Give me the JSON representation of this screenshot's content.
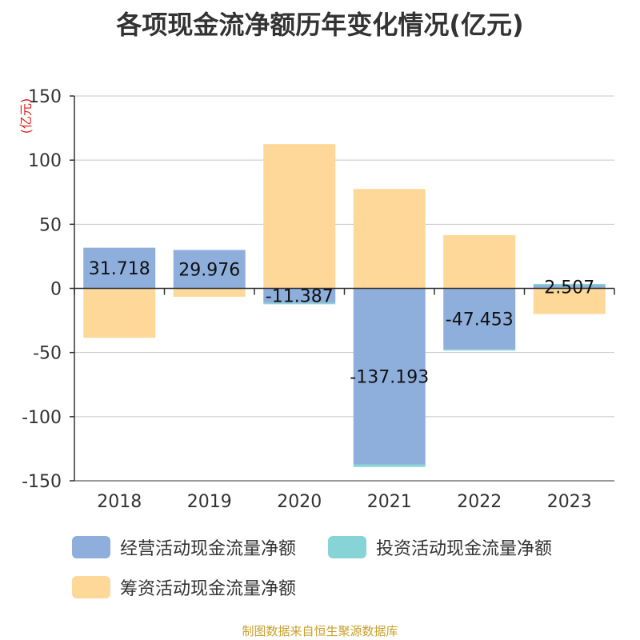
{
  "title": "各项现金流净额历年变化情况(亿元)",
  "source": "制图数据来自恒生聚源数据库",
  "chart_data": {
    "type": "bar",
    "stacked": true,
    "title": "各项现金流净额历年变化情况(亿元)",
    "ylabel": "(亿元)",
    "ylim": [
      -150,
      150
    ],
    "yticks": [
      150,
      100,
      50,
      0,
      -50,
      -100,
      -150
    ],
    "grid": true,
    "legend_position": "bottom",
    "categories": [
      "2018",
      "2019",
      "2020",
      "2021",
      "2022",
      "2023"
    ],
    "series": [
      {
        "name": "经营活动现金流量净额",
        "color": "#8eaedb",
        "values": [
          31.718,
          29.976,
          -11.387,
          -137.193,
          -47.453,
          2.507
        ]
      },
      {
        "name": "投资活动现金流量净额",
        "color": "#86d4d6",
        "values": [
          -0.5,
          -0.5,
          -1.0,
          -2.0,
          -1.0,
          1.0
        ]
      },
      {
        "name": "筹资活动现金流量净额",
        "color": "#fed898",
        "values": [
          -38,
          -6,
          112.5,
          77.5,
          41.5,
          -20
        ]
      }
    ],
    "data_labels": [
      "31.718",
      "29.976",
      "-11.387",
      "-137.193",
      "-47.453",
      "2.507"
    ]
  }
}
